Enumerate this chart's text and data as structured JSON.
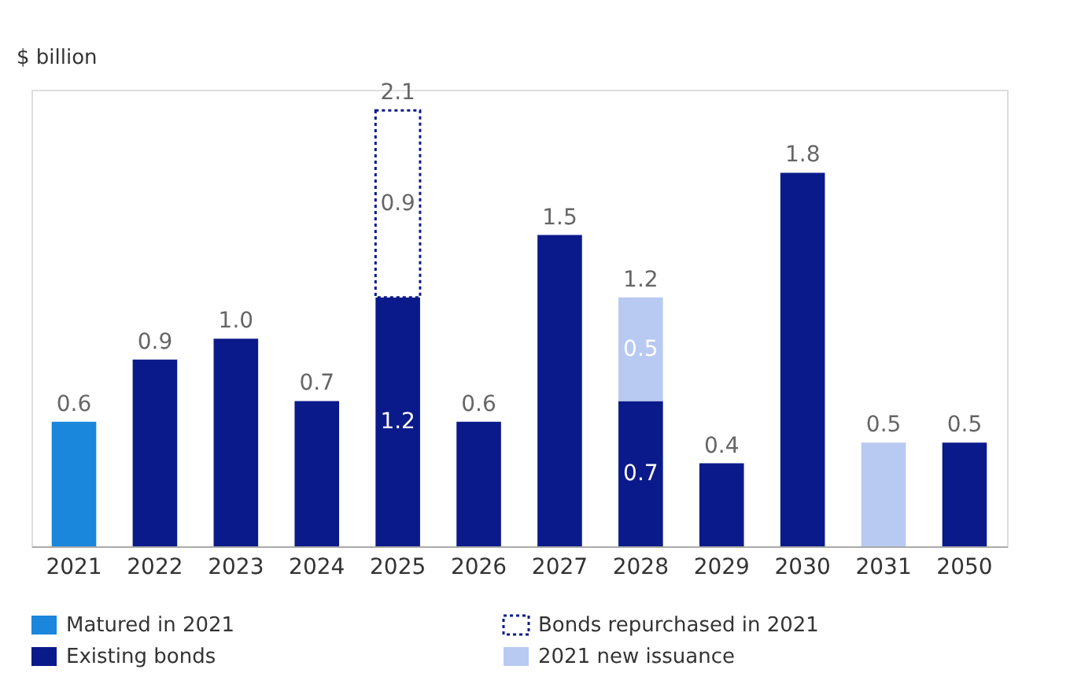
{
  "chart_data": {
    "type": "bar",
    "stacked": true,
    "ylabel": "$ billion",
    "categories": [
      "2021",
      "2022",
      "2023",
      "2024",
      "2025",
      "2026",
      "2027",
      "2028",
      "2029",
      "2030",
      "2031",
      "2050"
    ],
    "series": [
      {
        "name": "Matured in 2021",
        "color": "#1a86dc",
        "values": [
          0.6,
          null,
          null,
          null,
          null,
          null,
          null,
          null,
          null,
          null,
          null,
          null
        ],
        "value_labels": [
          null,
          null,
          null,
          null,
          null,
          null,
          null,
          null,
          null,
          null,
          null,
          null
        ]
      },
      {
        "name": "Existing bonds",
        "color": "#0b1a8a",
        "values": [
          null,
          0.9,
          1.0,
          0.7,
          1.2,
          0.6,
          1.5,
          0.7,
          0.4,
          1.8,
          null,
          0.5
        ],
        "value_labels": [
          null,
          null,
          null,
          null,
          "1.2",
          null,
          null,
          "0.7",
          null,
          null,
          null,
          null
        ]
      },
      {
        "name": "Bonds repurchased in 2021",
        "color": "#ffffff",
        "line_style": "dotted",
        "values": [
          null,
          null,
          null,
          null,
          0.9,
          null,
          null,
          null,
          null,
          null,
          null,
          null
        ],
        "value_labels": [
          null,
          null,
          null,
          null,
          "0.9",
          null,
          null,
          null,
          null,
          null,
          null,
          null
        ]
      },
      {
        "name": "2021 new issuance",
        "color": "#b8c9f2",
        "values": [
          null,
          null,
          null,
          null,
          null,
          null,
          null,
          0.5,
          null,
          null,
          0.5,
          null
        ],
        "value_labels": [
          null,
          null,
          null,
          null,
          null,
          null,
          null,
          "0.5",
          null,
          null,
          null,
          null
        ]
      }
    ],
    "totals": [
      "0.6",
      "0.9",
      "1.0",
      "0.7",
      "2.1",
      "0.6",
      "1.5",
      "1.2",
      "0.4",
      "1.8",
      "0.5",
      "0.5"
    ],
    "legend": "bottom",
    "grid": false
  }
}
